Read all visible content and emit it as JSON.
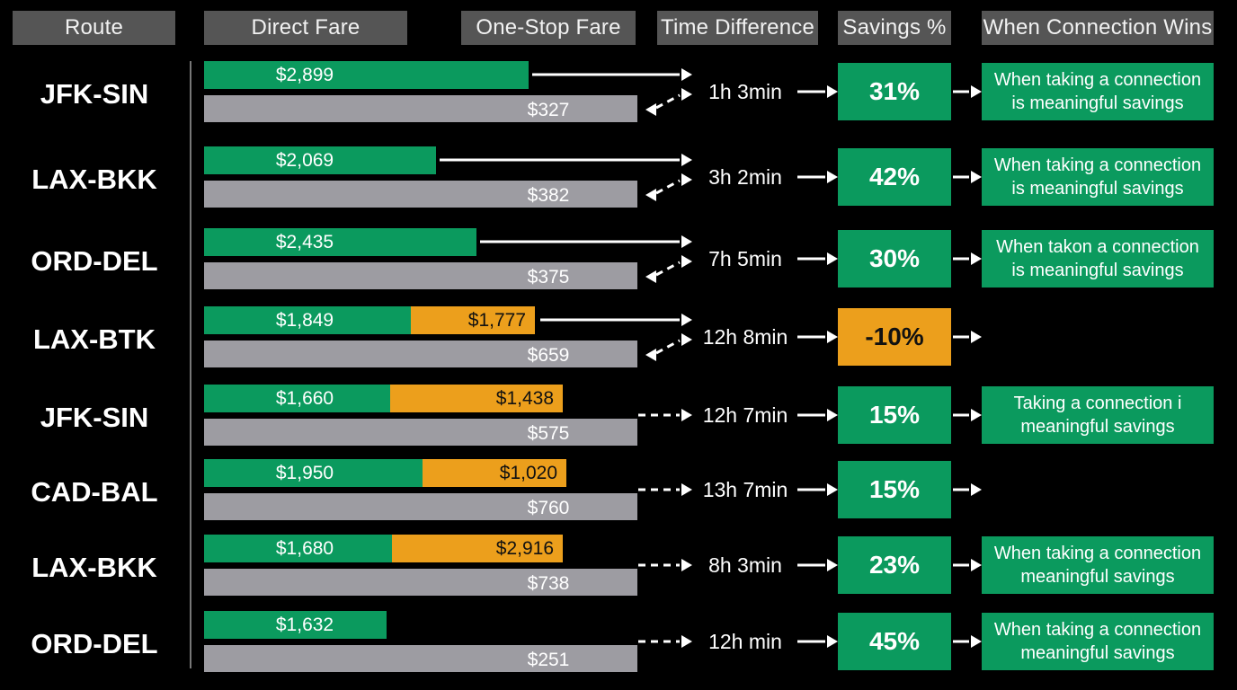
{
  "headers": {
    "route": "Route",
    "direct": "Direct Fare",
    "onestop": "One-Stop Fare",
    "time": "Time Difference",
    "savings": "Savings %",
    "wins": "When Connection Wins"
  },
  "colors": {
    "background": "#000000",
    "header": "#555555",
    "direct": "#0b9a5e",
    "alternate": "#ec9f1c",
    "one_stop": "#9d9ca2",
    "savings_negative": "#ec9f1c"
  },
  "chart_data": {
    "type": "bar",
    "scale": {
      "fare_axis_min": 0,
      "fare_axis_max": 4000
    },
    "rows": [
      {
        "route": "JFK-SIN",
        "direct": 2899,
        "direct_label": "$2,899",
        "alt_label": "",
        "one_stop_label": "$327",
        "time": "1h 3min",
        "savings_value": 31,
        "savings_label": "31%",
        "win_line1": "When taking a connection",
        "win_line2": "is meaningful savings"
      },
      {
        "route": "LAX-BKK",
        "direct": 2069,
        "direct_label": "$2,069",
        "alt_label": "",
        "one_stop_label": "$382",
        "time": "3h 2min",
        "savings_value": 42,
        "savings_label": "42%",
        "win_line1": "When taking a connection",
        "win_line2": "is meaningful savings"
      },
      {
        "route": "ORD-DEL",
        "direct": 2435,
        "direct_label": "$2,435",
        "alt_label": "",
        "one_stop_label": "$375",
        "time": "7h 5min",
        "savings_value": 30,
        "savings_label": "30%",
        "win_line1": "When takon a connection",
        "win_line2": "is meaningful savings"
      },
      {
        "route": "LAX-BTK",
        "direct": 1849,
        "direct_label": "$1,849",
        "alt_label": "$1,777",
        "one_stop_label": "$659",
        "time": "12h 8min",
        "savings_value": -10,
        "savings_label": "-10%",
        "win_line1": "",
        "win_line2": ""
      },
      {
        "route": "JFK-SIN",
        "direct": 1660,
        "direct_label": "$1,660",
        "alt_label": "$1,438",
        "one_stop_label": "$575",
        "time": "12h 7min",
        "savings_value": 15,
        "savings_label": "15%",
        "win_line1": "Taking a connection i",
        "win_line2": "meaningful savings"
      },
      {
        "route": "CAD-BAL",
        "direct": 1950,
        "direct_label": "$1,950",
        "alt_label": "$1,020",
        "one_stop_label": "$760",
        "time": "13h 7min",
        "savings_value": 15,
        "savings_label": "15%",
        "win_line1": "",
        "win_line2": ""
      },
      {
        "route": "LAX-BKK",
        "direct": 1680,
        "direct_label": "$1,680",
        "alt_label": "$2,916",
        "one_stop_label": "$738",
        "time": "8h 3min",
        "savings_value": 23,
        "savings_label": "23%",
        "win_line1": "When taking a connection",
        "win_line2": "meaningful savings"
      },
      {
        "route": "ORD-DEL",
        "direct": 1632,
        "direct_label": "$1,632",
        "alt_label": "",
        "one_stop_label": "$251",
        "time": "12h min",
        "savings_value": 45,
        "savings_label": "45%",
        "win_line1": "When taking a connection",
        "win_line2": "meaningful savings"
      }
    ]
  }
}
